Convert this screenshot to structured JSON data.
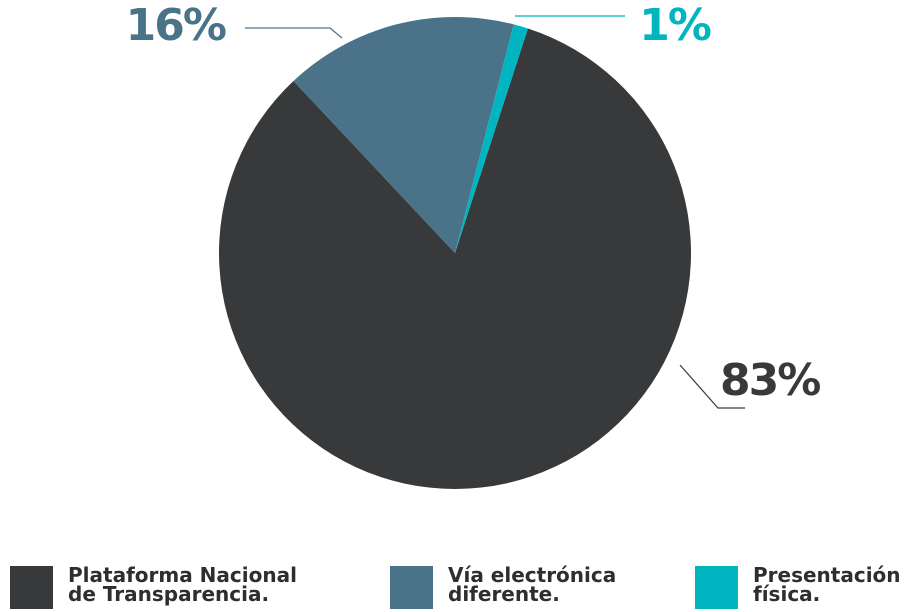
{
  "chart_data": {
    "type": "pie",
    "categories": [
      "Plataforma Nacional de Transparencia.",
      "Vía electrónica diferente.",
      "Presentación física."
    ],
    "values": [
      83,
      16,
      1
    ],
    "value_labels": [
      "83%",
      "16%",
      "1%"
    ],
    "colors": [
      "#38393b",
      "#4a7389",
      "#00b5bf"
    ]
  }
}
